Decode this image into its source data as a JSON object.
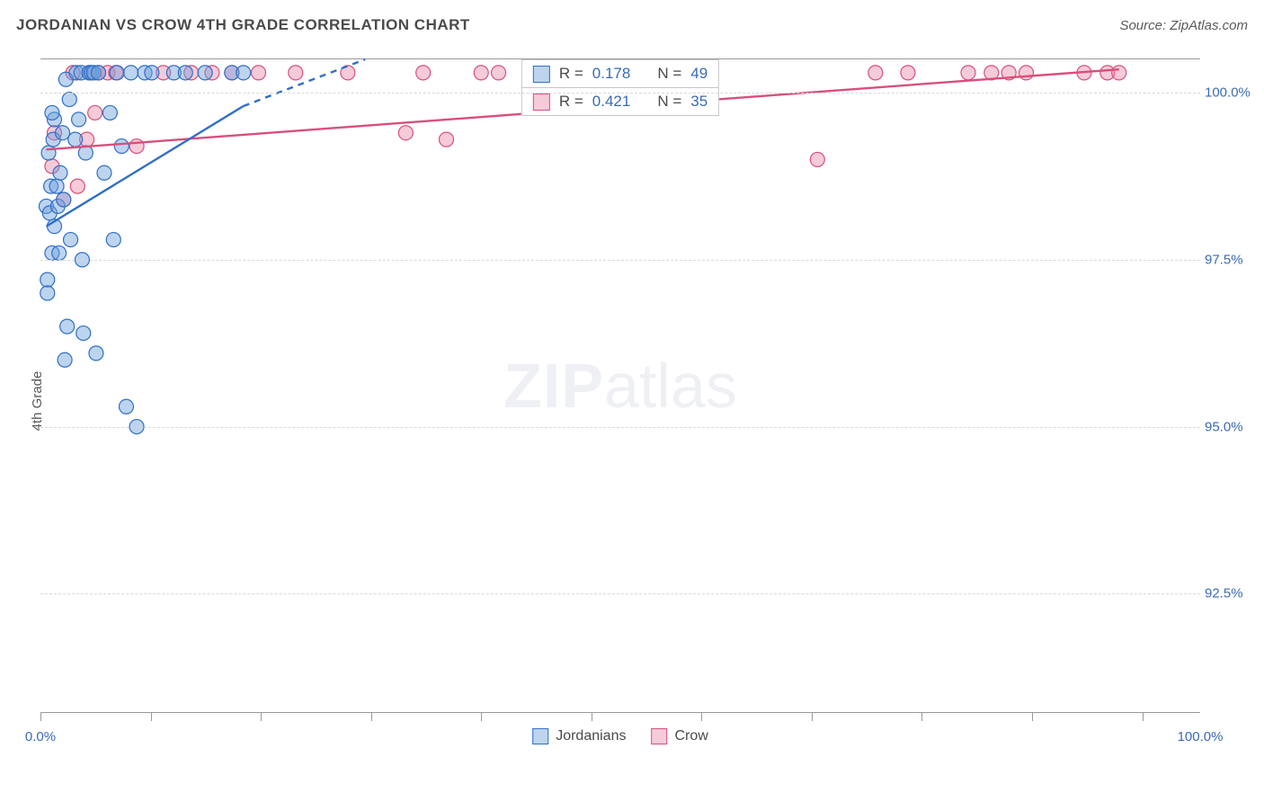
{
  "title": "JORDANIAN VS CROW 4TH GRADE CORRELATION CHART",
  "source": "Source: ZipAtlas.com",
  "y_label": "4th Grade",
  "watermark": {
    "left": "ZIP",
    "right": "atlas"
  },
  "colors": {
    "series_a_stroke": "#2f6fc7",
    "series_a_fill": "rgba(108,160,220,0.45)",
    "series_b_stroke": "#d94f7a",
    "series_b_fill": "rgba(236,140,170,0.45)",
    "axis_text": "#3a6ab5",
    "grid": "#d8d8d8",
    "text": "#4a4a4a"
  },
  "x_axis": {
    "min": 0.0,
    "max": 100.0,
    "ticks": [
      0.0,
      9.5,
      19,
      28.5,
      38,
      47.5,
      57,
      66.5,
      76,
      85.5,
      95
    ],
    "labels": [
      {
        "pos": 0.0,
        "text": "0.0%"
      },
      {
        "pos": 100.0,
        "text": "100.0%"
      }
    ]
  },
  "y_axis": {
    "min": 90.7,
    "max": 100.5,
    "grid_ticks": [
      92.5,
      95.0,
      97.5,
      100.0
    ],
    "labels": [
      "92.5%",
      "95.0%",
      "97.5%",
      "100.0%"
    ]
  },
  "legend": {
    "a": "Jordanians",
    "b": "Crow"
  },
  "stats": {
    "a": {
      "R_label": "R =",
      "R": "0.178",
      "N_label": "N =",
      "N": "49"
    },
    "b": {
      "R_label": "R =",
      "R": "0.421",
      "N_label": "N =",
      "N": "35"
    }
  },
  "marker_radius": 8,
  "series_a": {
    "points": [
      [
        0.5,
        98.3
      ],
      [
        0.6,
        97.2
      ],
      [
        0.8,
        98.2
      ],
      [
        0.9,
        98.6
      ],
      [
        0.7,
        99.1
      ],
      [
        1.2,
        98.0
      ],
      [
        0.6,
        97.0
      ],
      [
        1.0,
        97.6
      ],
      [
        1.1,
        99.3
      ],
      [
        1.2,
        99.6
      ],
      [
        1.0,
        99.7
      ],
      [
        1.5,
        98.3
      ],
      [
        1.4,
        98.6
      ],
      [
        1.6,
        97.6
      ],
      [
        2.0,
        98.4
      ],
      [
        1.7,
        98.8
      ],
      [
        1.9,
        99.4
      ],
      [
        2.2,
        100.2
      ],
      [
        2.5,
        99.9
      ],
      [
        2.6,
        97.8
      ],
      [
        3.0,
        99.3
      ],
      [
        3.1,
        100.3
      ],
      [
        3.3,
        99.6
      ],
      [
        3.5,
        100.3
      ],
      [
        3.6,
        97.5
      ],
      [
        3.9,
        99.1
      ],
      [
        4.2,
        100.3
      ],
      [
        4.4,
        100.3
      ],
      [
        4.6,
        100.3
      ],
      [
        5.0,
        100.3
      ],
      [
        5.5,
        98.8
      ],
      [
        6.0,
        99.7
      ],
      [
        6.3,
        97.8
      ],
      [
        6.6,
        100.3
      ],
      [
        7.0,
        99.2
      ],
      [
        7.4,
        95.3
      ],
      [
        7.8,
        100.3
      ],
      [
        8.3,
        95.0
      ],
      [
        9.0,
        100.3
      ],
      [
        9.6,
        100.3
      ],
      [
        11.5,
        100.3
      ],
      [
        12.5,
        100.3
      ],
      [
        14.2,
        100.3
      ],
      [
        16.5,
        100.3
      ],
      [
        17.5,
        100.3
      ],
      [
        2.3,
        96.5
      ],
      [
        3.7,
        96.4
      ],
      [
        4.8,
        96.1
      ],
      [
        2.1,
        96.0
      ]
    ],
    "trend_solid": [
      [
        0.5,
        98.0
      ],
      [
        17.5,
        99.8
      ]
    ],
    "trend_dashed": [
      [
        17.5,
        99.8
      ],
      [
        28.0,
        100.5
      ]
    ]
  },
  "series_b": {
    "points": [
      [
        1.0,
        98.9
      ],
      [
        1.2,
        99.4
      ],
      [
        2.0,
        98.4
      ],
      [
        2.8,
        100.3
      ],
      [
        3.2,
        98.6
      ],
      [
        4.0,
        99.3
      ],
      [
        4.7,
        99.7
      ],
      [
        5.8,
        100.3
      ],
      [
        6.5,
        100.3
      ],
      [
        8.3,
        99.2
      ],
      [
        10.6,
        100.3
      ],
      [
        13.0,
        100.3
      ],
      [
        14.8,
        100.3
      ],
      [
        16.5,
        100.3
      ],
      [
        18.8,
        100.3
      ],
      [
        22.0,
        100.3
      ],
      [
        26.5,
        100.3
      ],
      [
        31.5,
        99.4
      ],
      [
        33.0,
        100.3
      ],
      [
        35.0,
        99.3
      ],
      [
        38.0,
        100.3
      ],
      [
        39.5,
        100.3
      ],
      [
        50.5,
        100.3
      ],
      [
        67.0,
        99.0
      ],
      [
        72.0,
        100.3
      ],
      [
        74.8,
        100.3
      ],
      [
        80.0,
        100.3
      ],
      [
        82.0,
        100.3
      ],
      [
        83.5,
        100.3
      ],
      [
        85.0,
        100.3
      ],
      [
        90.0,
        100.3
      ],
      [
        92.0,
        100.3
      ],
      [
        93.0,
        100.3
      ],
      [
        4.2,
        100.3
      ],
      [
        5.0,
        100.3
      ]
    ],
    "trend_solid": [
      [
        0.5,
        99.15
      ],
      [
        93.0,
        100.35
      ]
    ]
  }
}
